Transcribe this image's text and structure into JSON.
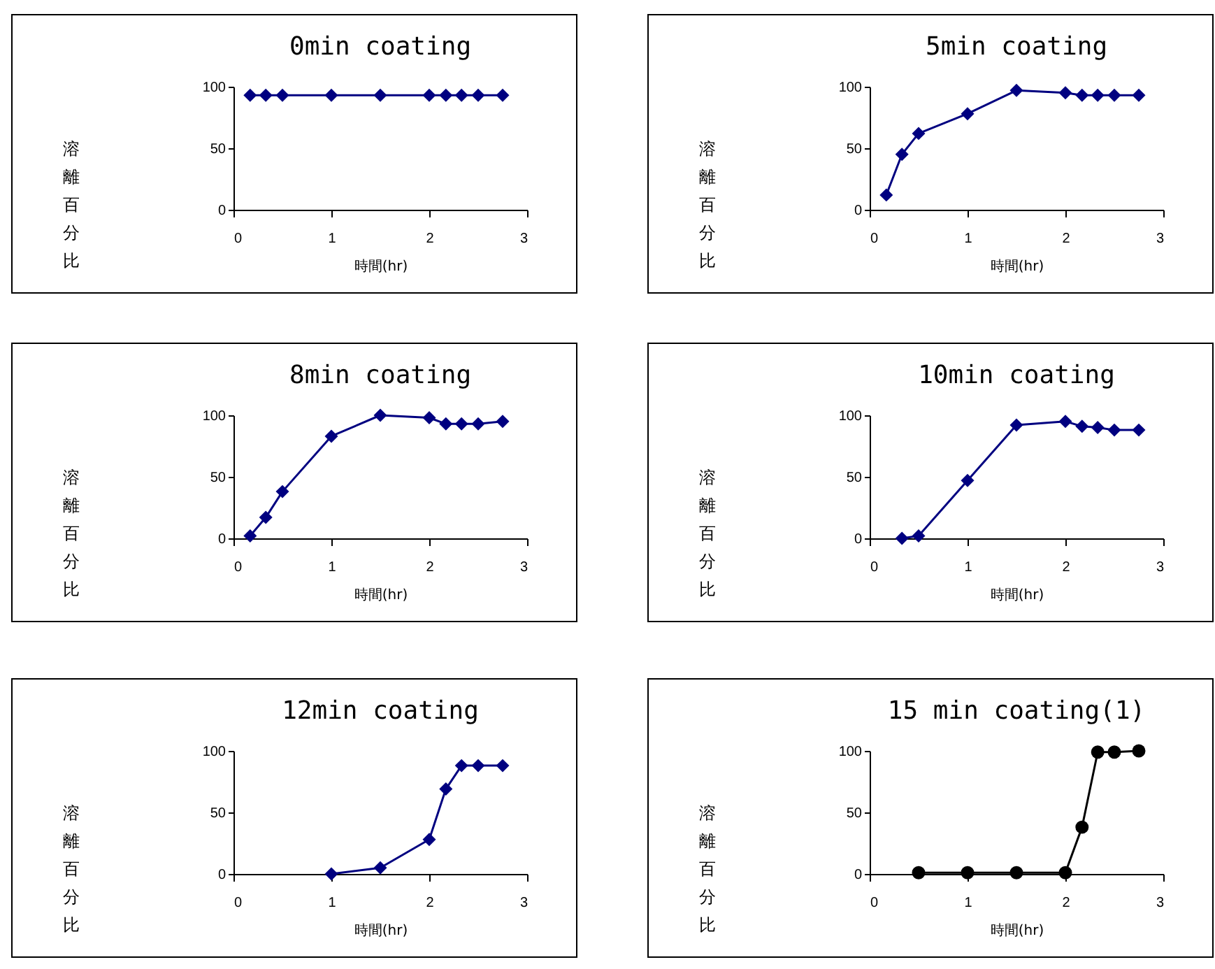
{
  "chart_data": [
    {
      "type": "line",
      "title": "0min coating",
      "xlabel": "時間(hr)",
      "ylabel": "溶離百分比",
      "x": [
        0.17,
        0.33,
        0.5,
        1,
        1.5,
        2,
        2.17,
        2.33,
        2.5,
        2.75
      ],
      "series": [
        {
          "color": "#000080",
          "values": [
            93,
            93,
            93,
            93,
            93,
            93,
            93,
            93,
            93,
            93
          ]
        }
      ],
      "xlim": [
        0,
        3
      ],
      "xticks": [
        0,
        1,
        2,
        3
      ],
      "ylim": [
        0,
        100
      ],
      "yticks": [
        0,
        50,
        100
      ],
      "marker": "diamond"
    },
    {
      "type": "line",
      "title": "5min coating",
      "xlabel": "時間(hr)",
      "ylabel": "溶離百分比",
      "x": [
        0.17,
        0.33,
        0.5,
        1,
        1.5,
        2,
        2.17,
        2.33,
        2.5,
        2.75
      ],
      "series": [
        {
          "color": "#000080",
          "values": [
            12,
            45,
            62,
            78,
            97,
            95,
            93,
            93,
            93,
            93
          ]
        }
      ],
      "xlim": [
        0,
        3
      ],
      "xticks": [
        0,
        1,
        2,
        3
      ],
      "ylim": [
        0,
        100
      ],
      "yticks": [
        0,
        50,
        100
      ],
      "marker": "diamond"
    },
    {
      "type": "line",
      "title": "8min coating",
      "xlabel": "時間(hr)",
      "ylabel": "溶離百分比",
      "x": [
        0.17,
        0.33,
        0.5,
        1,
        1.5,
        2,
        2.17,
        2.33,
        2.5,
        2.75
      ],
      "series": [
        {
          "color": "#000080",
          "values": [
            2,
            17,
            38,
            83,
            100,
            98,
            93,
            93,
            93,
            95
          ]
        }
      ],
      "xlim": [
        0,
        3
      ],
      "xticks": [
        0,
        1,
        2,
        3
      ],
      "ylim": [
        0,
        100
      ],
      "yticks": [
        0,
        50,
        100
      ],
      "marker": "diamond"
    },
    {
      "type": "line",
      "title": "10min coating",
      "xlabel": "時間(hr)",
      "ylabel": "溶離百分比",
      "x": [
        0.33,
        0.5,
        1,
        1.5,
        2,
        2.17,
        2.33,
        2.5,
        2.75
      ],
      "series": [
        {
          "color": "#000080",
          "values": [
            0,
            2,
            47,
            92,
            95,
            91,
            90,
            88,
            88
          ]
        }
      ],
      "xlim": [
        0,
        3
      ],
      "xticks": [
        0,
        1,
        2,
        3
      ],
      "ylim": [
        0,
        100
      ],
      "yticks": [
        0,
        50,
        100
      ],
      "marker": "diamond"
    },
    {
      "type": "line",
      "title": "12min coating",
      "xlabel": "時間(hr)",
      "ylabel": "溶離百分比",
      "x": [
        1,
        1.5,
        2,
        2.17,
        2.33,
        2.5,
        2.75
      ],
      "series": [
        {
          "color": "#000080",
          "values": [
            0,
            5,
            28,
            69,
            88,
            88,
            88
          ]
        }
      ],
      "xlim": [
        0,
        3
      ],
      "xticks": [
        0,
        1,
        2,
        3
      ],
      "ylim": [
        0,
        100
      ],
      "yticks": [
        0,
        50,
        100
      ],
      "marker": "diamond"
    },
    {
      "type": "line",
      "title": "15 min coating(1)",
      "xlabel": "時間(hr)",
      "ylabel": "溶離百分比",
      "x": [
        0.5,
        1,
        1.5,
        2,
        2.17,
        2.33,
        2.5,
        2.75
      ],
      "series": [
        {
          "color": "#000000",
          "values": [
            1,
            1,
            1,
            1,
            38,
            99,
            99,
            100
          ]
        }
      ],
      "xlim": [
        0,
        3
      ],
      "xticks": [
        0,
        1,
        2,
        3
      ],
      "ylim": [
        0,
        100
      ],
      "yticks": [
        0,
        50,
        100
      ],
      "marker": "circle"
    }
  ]
}
